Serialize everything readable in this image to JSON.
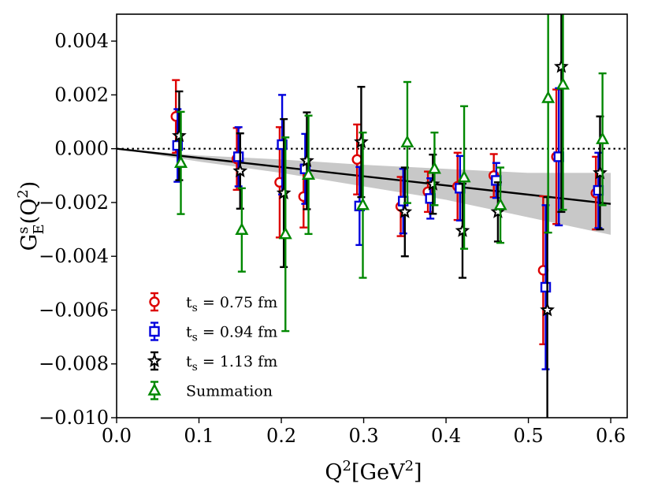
{
  "chart_data": {
    "type": "scatter",
    "xlabel": "Q²[GeV²]",
    "ylabel": "G_E^s(Q²)",
    "xlim": [
      0.0,
      0.62
    ],
    "ylim": [
      -0.01,
      0.005
    ],
    "x_ticks": [
      "0.0",
      "0.1",
      "0.2",
      "0.3",
      "0.4",
      "0.5",
      "0.6"
    ],
    "x_tick_values": [
      0.0,
      0.1,
      0.2,
      0.3,
      0.4,
      0.5,
      0.6
    ],
    "y_ticks": [
      "−0.010",
      "−0.008",
      "−0.006",
      "−0.004",
      "−0.002",
      "0.000",
      "0.002",
      "0.004"
    ],
    "y_tick_values": [
      -0.01,
      -0.008,
      -0.006,
      -0.004,
      -0.002,
      0.0,
      0.002,
      0.004
    ],
    "reference_line": {
      "y": 0.0,
      "style": "dotted"
    },
    "fit": {
      "line": [
        [
          0.0,
          0.0
        ],
        [
          0.6,
          -0.00205
        ]
      ],
      "band_upper": [
        [
          0.0,
          0.0
        ],
        [
          0.1,
          -0.00025
        ],
        [
          0.2,
          -0.0004
        ],
        [
          0.3,
          -0.0006
        ],
        [
          0.4,
          -0.00075
        ],
        [
          0.5,
          -0.0009
        ],
        [
          0.6,
          -0.0009
        ]
      ],
      "band_lower": [
        [
          0.0,
          0.0
        ],
        [
          0.1,
          -0.00048
        ],
        [
          0.2,
          -0.0009
        ],
        [
          0.3,
          -0.0014
        ],
        [
          0.4,
          -0.0019
        ],
        [
          0.5,
          -0.00255
        ],
        [
          0.6,
          -0.0032
        ]
      ]
    },
    "series": [
      {
        "name": "t_s = 0.75 fm",
        "legend_main": "t",
        "legend_sub": "s",
        "legend_rest": " = 0.75 fm",
        "color": "#dd0000",
        "marker": "circle",
        "points": [
          {
            "x": 0.072,
            "y": 0.0012,
            "yerr": 0.00135
          },
          {
            "x": 0.146,
            "y": -0.00038,
            "yerr": 0.00115
          },
          {
            "x": 0.198,
            "y": -0.00125,
            "yerr": 0.00205
          },
          {
            "x": 0.227,
            "y": -0.00178,
            "yerr": 0.00115
          },
          {
            "x": 0.292,
            "y": -0.0004,
            "yerr": 0.0013
          },
          {
            "x": 0.345,
            "y": -0.00215,
            "yerr": 0.0011
          },
          {
            "x": 0.378,
            "y": -0.0016,
            "yerr": 0.00075
          },
          {
            "x": 0.414,
            "y": -0.0014,
            "yerr": 0.00125
          },
          {
            "x": 0.458,
            "y": -0.001,
            "yerr": 0.0008
          },
          {
            "x": 0.518,
            "y": -0.00452,
            "yerr": 0.00275
          },
          {
            "x": 0.534,
            "y": -0.0003,
            "yerr": 0.0025
          },
          {
            "x": 0.582,
            "y": -0.00165,
            "yerr": 0.00135
          }
        ]
      },
      {
        "name": "t_s = 0.94 fm",
        "legend_main": "t",
        "legend_sub": "s",
        "legend_rest": " = 0.94 fm",
        "color": "#0000dd",
        "marker": "square",
        "points": [
          {
            "x": 0.074,
            "y": 0.00012,
            "yerr": 0.00135
          },
          {
            "x": 0.148,
            "y": -0.0003,
            "yerr": 0.0011
          },
          {
            "x": 0.201,
            "y": 0.00015,
            "yerr": 0.00185
          },
          {
            "x": 0.229,
            "y": -0.00075,
            "yerr": 0.0013
          },
          {
            "x": 0.295,
            "y": -0.00213,
            "yerr": 0.00145
          },
          {
            "x": 0.348,
            "y": -0.00195,
            "yerr": 0.0012
          },
          {
            "x": 0.381,
            "y": -0.00185,
            "yerr": 0.00075
          },
          {
            "x": 0.417,
            "y": -0.00147,
            "yerr": 0.0012
          },
          {
            "x": 0.461,
            "y": -0.00118,
            "yerr": 0.00065
          },
          {
            "x": 0.521,
            "y": -0.00515,
            "yerr": 0.00305
          },
          {
            "x": 0.537,
            "y": -0.0003,
            "yerr": 0.00255
          },
          {
            "x": 0.585,
            "y": -0.00155,
            "yerr": 0.0014
          }
        ]
      },
      {
        "name": "t_s = 1.13 fm",
        "legend_main": "t",
        "legend_sub": "s",
        "legend_rest": " = 1.13 fm",
        "color": "#000000",
        "marker": "star",
        "points": [
          {
            "x": 0.076,
            "y": 0.00048,
            "yerr": 0.00165
          },
          {
            "x": 0.15,
            "y": -0.00083,
            "yerr": 0.0014
          },
          {
            "x": 0.203,
            "y": -0.00165,
            "yerr": 0.00275
          },
          {
            "x": 0.231,
            "y": -0.00045,
            "yerr": 0.0018
          },
          {
            "x": 0.297,
            "y": 0.00025,
            "yerr": 0.00205
          },
          {
            "x": 0.35,
            "y": -0.00235,
            "yerr": 0.00165
          },
          {
            "x": 0.384,
            "y": -0.00132,
            "yerr": 0.0011
          },
          {
            "x": 0.42,
            "y": -0.00305,
            "yerr": 0.00175
          },
          {
            "x": 0.463,
            "y": -0.00235,
            "yerr": 0.0011
          },
          {
            "x": 0.523,
            "y": -0.006,
            "yerr": 0.0042
          },
          {
            "x": 0.54,
            "y": 0.00305,
            "yerr": 0.0054
          },
          {
            "x": 0.587,
            "y": -0.0009,
            "yerr": 0.0021
          }
        ]
      },
      {
        "name": "Summation",
        "legend_main": "Summation",
        "legend_sub": "",
        "legend_rest": "",
        "color": "#008800",
        "marker": "triangle",
        "points": [
          {
            "x": 0.078,
            "y": -0.00053,
            "yerr": 0.0019
          },
          {
            "x": 0.152,
            "y": -0.00302,
            "yerr": 0.00155
          },
          {
            "x": 0.205,
            "y": -0.00318,
            "yerr": 0.0036
          },
          {
            "x": 0.233,
            "y": -0.00097,
            "yerr": 0.0022
          },
          {
            "x": 0.299,
            "y": -0.0021,
            "yerr": 0.0027
          },
          {
            "x": 0.353,
            "y": 0.00023,
            "yerr": 0.00225
          },
          {
            "x": 0.386,
            "y": -0.00075,
            "yerr": 0.00135
          },
          {
            "x": 0.422,
            "y": -0.00107,
            "yerr": 0.00265
          },
          {
            "x": 0.466,
            "y": -0.0021,
            "yerr": 0.0014
          },
          {
            "x": 0.524,
            "y": 0.00188,
            "yerr": 0.005
          },
          {
            "x": 0.542,
            "y": 0.00238,
            "yerr": 0.00465
          },
          {
            "x": 0.59,
            "y": 0.00035,
            "yerr": 0.00245
          }
        ]
      }
    ]
  }
}
